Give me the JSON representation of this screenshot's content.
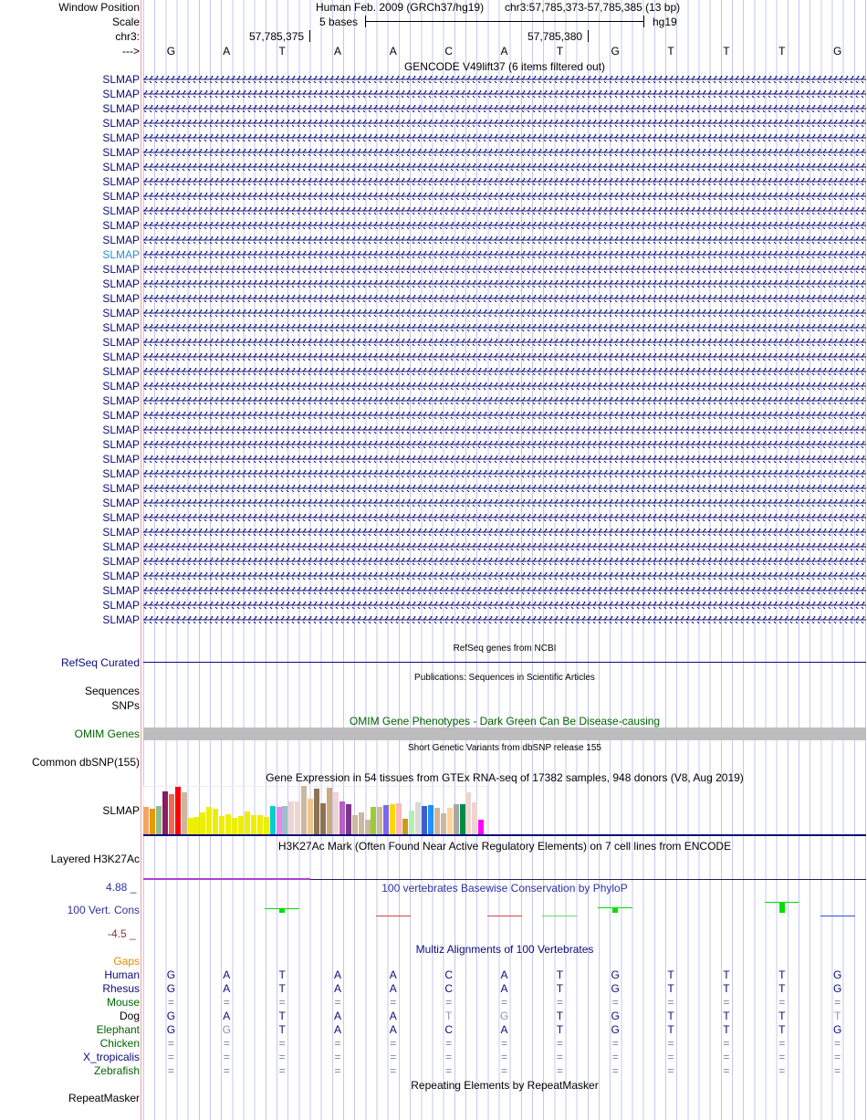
{
  "header": {
    "window_position_label": "Window Position",
    "scale_label": "Scale",
    "chrom_label": "chr3:",
    "strand_label": "--->",
    "assembly": "Human Feb. 2009 (GRCh37/hg19)",
    "position": "chr3:57,785,373-57,785,385 (13 bp)",
    "scale_text": "5 bases",
    "scale_db": "hg19",
    "tick_1": "57,785,375",
    "tick_2": "57,785,380",
    "bases": [
      "G",
      "A",
      "T",
      "A",
      "A",
      "C",
      "A",
      "T",
      "G",
      "T",
      "T",
      "T",
      "G"
    ]
  },
  "gencode": {
    "title": "GENCODE V49lift37 (6 items filtered out)",
    "gene_name": "SLMAP",
    "row_count": 38,
    "highlighted_row": 12,
    "color": "#0c0c78",
    "highlight_color": "#2a8fc9"
  },
  "refseq": {
    "title": "RefSeq genes from NCBI",
    "label": "RefSeq Curated"
  },
  "publications": {
    "title": "Publications: Sequences in Scientific Articles",
    "label_1": "Sequences",
    "label_2": "SNPs"
  },
  "omim": {
    "title": "OMIM Gene Phenotypes - Dark Green Can Be Disease-causing",
    "label": "OMIM Genes"
  },
  "dbsnp": {
    "title": "Short Genetic Variants from dbSNP release 155",
    "label": "Common dbSNP(155)"
  },
  "gtex": {
    "title": "Gene Expression in 54 tissues from GTEx RNA-seq of 17382 samples, 948 donors (V8, Aug 2019)",
    "label": "SLMAP",
    "values": [
      93,
      87,
      96,
      144,
      135,
      159,
      141,
      54,
      57,
      72,
      93,
      87,
      60,
      66,
      54,
      60,
      75,
      63,
      63,
      57,
      96,
      93,
      96,
      111,
      111,
      162,
      120,
      153,
      105,
      156,
      141,
      111,
      102,
      63,
      72,
      48,
      93,
      93,
      99,
      102,
      105,
      51,
      78,
      108,
      96,
      99,
      90,
      69,
      90,
      102,
      102,
      141,
      108,
      48
    ],
    "colors": [
      "#f4a460",
      "#e69a00",
      "#8fbc8f",
      "#8b1c62",
      "#ee6a50",
      "#ff0000",
      "#cdb79e",
      "#eeee00",
      "#eeee00",
      "#eeee00",
      "#eeee00",
      "#eeee00",
      "#eeee00",
      "#eeee00",
      "#eeee00",
      "#eeee00",
      "#eeee00",
      "#eeee00",
      "#eeee00",
      "#eeee00",
      "#00ced1",
      "#ee82ee",
      "#9ac0cd",
      "#eed5d2",
      "#eed5d2",
      "#cdb79e",
      "#eec591",
      "#8b7355",
      "#8b7355",
      "#cdaa7d",
      "#eed5d2",
      "#b460c8",
      "#7a378b",
      "#cdb79e",
      "#cdb79e",
      "#cdb79e",
      "#9acd32",
      "#cdb79e",
      "#7b68ee",
      "#ffd700",
      "#ffb6c1",
      "#cd9b1d",
      "#b4eeb4",
      "#d9d9d9",
      "#3a5fcd",
      "#1e90ff",
      "#cdb79e",
      "#cdb79e",
      "#ffd39b",
      "#a6a6a6",
      "#008b45",
      "#eed5d2",
      "#eed5d2",
      "#ff00ff"
    ]
  },
  "h3k27ac": {
    "title": "H3K27Ac Mark (Often Found Near Active Regulatory Elements) on 7 cell lines from ENCODE",
    "label": "Layered H3K27Ac"
  },
  "phylop": {
    "title": "100 vertebrates Basewise Conservation by PhyloP",
    "label": "100 Vert. Cons",
    "max_label": "4.88 _",
    "min_label": "-4.5 _",
    "values": [
      null,
      null,
      0.9,
      null,
      -0.1,
      null,
      -0.3,
      0.3,
      1.0,
      null,
      null,
      2.0,
      -0.2
    ],
    "colors": [
      null,
      null,
      "#00e000",
      null,
      "#e04040",
      null,
      "#e04040",
      "#60e060",
      "#00e000",
      null,
      null,
      "#00e000",
      "#3050e0"
    ]
  },
  "multiz": {
    "title": "Multiz Alignments of 100 Vertebrates",
    "gaps_label": "Gaps",
    "species": [
      {
        "name": "Human",
        "color": "#0c0c78",
        "seq": [
          "G",
          "A",
          "T",
          "A",
          "A",
          "C",
          "A",
          "T",
          "G",
          "T",
          "T",
          "T",
          "G"
        ]
      },
      {
        "name": "Rhesus",
        "color": "#0c0c78",
        "seq": [
          "G",
          "A",
          "T",
          "A",
          "A",
          "C",
          "A",
          "T",
          "G",
          "T",
          "T",
          "T",
          "G"
        ]
      },
      {
        "name": "Mouse",
        "color": "#006400",
        "seq": [
          "=",
          "=",
          "=",
          "=",
          "=",
          "=",
          "=",
          "=",
          "=",
          "=",
          "=",
          "=",
          "="
        ]
      },
      {
        "name": "Dog",
        "color": "#000000",
        "seq": [
          "G",
          "A",
          "T",
          "A",
          "A",
          "T",
          "G",
          "T",
          "G",
          "T",
          "T",
          "T",
          "T"
        ],
        "mismatch": [
          5,
          6,
          12
        ]
      },
      {
        "name": "Elephant",
        "color": "#006400",
        "seq": [
          "G",
          "G",
          "T",
          "A",
          "A",
          "C",
          "A",
          "T",
          "G",
          "T",
          "T",
          "T",
          "G"
        ],
        "mismatch": [
          1
        ]
      },
      {
        "name": "Chicken",
        "color": "#006400",
        "seq": [
          "=",
          "=",
          "=",
          "=",
          "=",
          "=",
          "=",
          "=",
          "=",
          "=",
          "=",
          "=",
          "="
        ]
      },
      {
        "name": "X_tropicalis",
        "color": "#0c0c78",
        "seq": [
          "=",
          "=",
          "=",
          "=",
          "=",
          "=",
          "=",
          "=",
          "=",
          "=",
          "=",
          "=",
          "="
        ]
      },
      {
        "name": "Zebrafish",
        "color": "#006400",
        "seq": [
          "=",
          "=",
          "=",
          "=",
          "=",
          "=",
          "=",
          "=",
          "=",
          "=",
          "=",
          "=",
          "="
        ]
      }
    ]
  },
  "repeatmasker": {
    "title": "Repeating Elements by RepeatMasker",
    "label": "RepeatMasker"
  }
}
